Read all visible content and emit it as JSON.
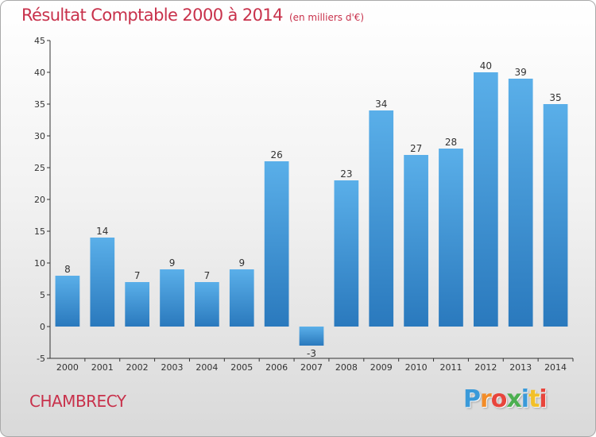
{
  "header": {
    "title": "Résultat Comptable 2000 à 2014",
    "subtitle": "(en milliers d'€)"
  },
  "footer": {
    "commune": "CHAMBRECY",
    "logo_letters": [
      "P",
      "r",
      "o",
      "x",
      "i",
      "t",
      "i"
    ],
    "logo_colors": [
      "#3a9ad9",
      "#f28c28",
      "#e8453c",
      "#4caf50",
      "#3a9ad9",
      "#f2c028",
      "#e8453c"
    ]
  },
  "chart_data": {
    "type": "bar",
    "title": "Résultat Comptable 2000 à 2014",
    "subtitle": "(en milliers d'€)",
    "categories": [
      "2000",
      "2001",
      "2002",
      "2003",
      "2004",
      "2005",
      "2006",
      "2007",
      "2008",
      "2009",
      "2010",
      "2011",
      "2012",
      "2013",
      "2014"
    ],
    "values": [
      8,
      14,
      7,
      9,
      7,
      9,
      26,
      -3,
      23,
      34,
      27,
      28,
      40,
      39,
      35
    ],
    "value_labels": [
      "8",
      "14",
      "7",
      "9",
      "7",
      "9",
      "26",
      "-3",
      "23",
      "34",
      "27",
      "28",
      "40",
      "39",
      "35"
    ],
    "ylim": [
      -5,
      45
    ],
    "yticks": [
      "-5",
      "0",
      "5",
      "10",
      "15",
      "20",
      "25",
      "30",
      "35",
      "40",
      "45"
    ],
    "ytick_values": [
      -5,
      0,
      5,
      10,
      15,
      20,
      25,
      30,
      35,
      40,
      45
    ],
    "grid": false,
    "legend": "none",
    "bar_color": "#3d8fd0"
  }
}
